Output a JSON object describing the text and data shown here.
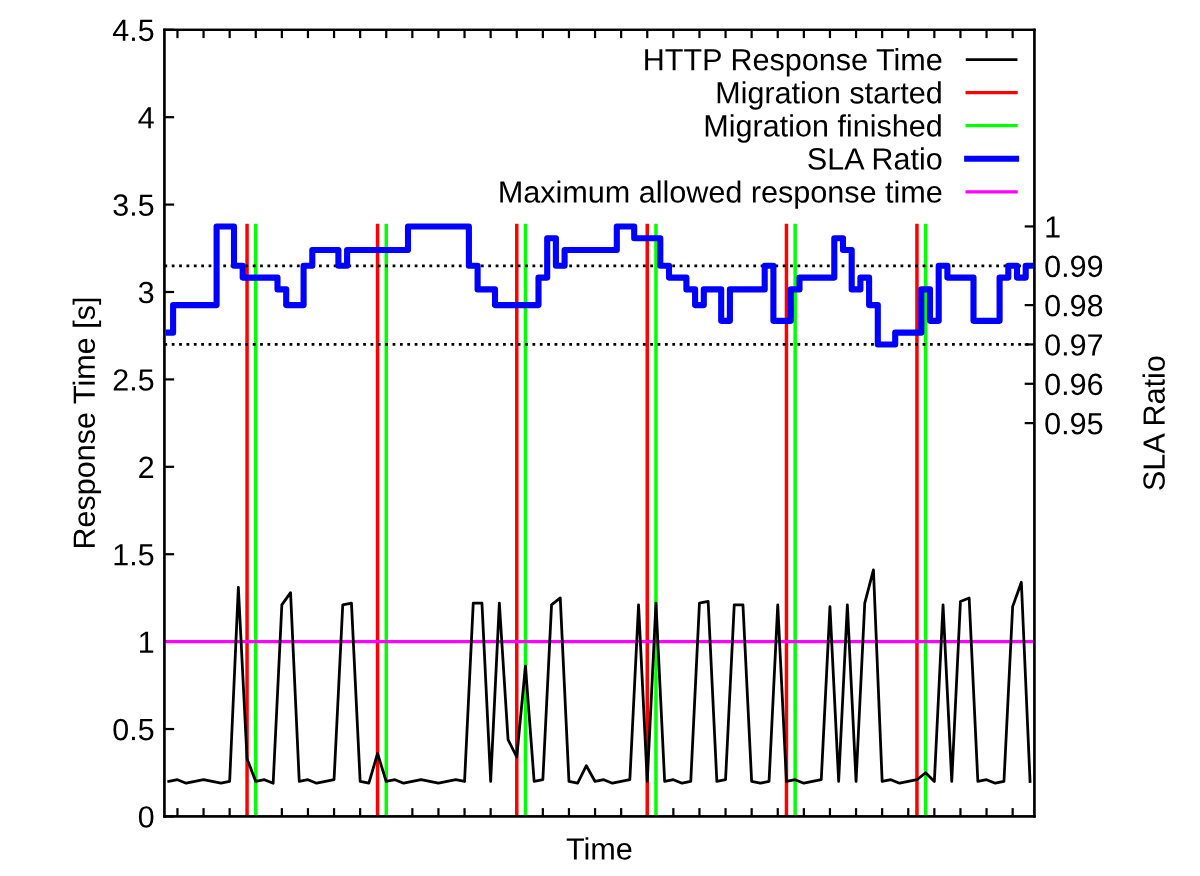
{
  "chart_data": {
    "type": "line",
    "xlabel": "Time",
    "ylabel": "Response Time [s]",
    "y2label": "SLA Ratio",
    "categories": [
      null,
      null,
      null,
      null,
      null,
      null,
      null,
      null,
      null,
      null,
      null,
      null,
      null,
      null,
      null,
      null,
      null,
      null,
      null,
      null,
      null,
      null,
      null,
      null,
      null,
      null,
      null,
      null,
      null,
      null,
      null,
      null,
      null,
      null,
      null,
      null,
      null,
      null,
      null,
      null,
      null,
      null,
      null,
      null,
      null,
      null,
      null,
      null,
      null,
      null,
      null,
      null,
      null,
      null,
      null,
      null,
      null,
      null,
      null,
      null,
      null,
      null,
      null,
      null,
      null,
      null,
      null,
      null,
      null,
      null,
      null,
      null,
      null,
      null,
      null,
      null,
      null,
      null,
      null,
      null,
      null,
      null,
      null,
      null,
      null,
      null,
      null,
      null,
      null,
      null,
      null,
      null,
      null,
      null,
      null,
      null,
      null,
      null,
      null,
      null
    ],
    "ylim": [
      0,
      4.5
    ],
    "yticks": [
      0,
      0.5,
      1,
      1.5,
      2,
      2.5,
      3,
      3.5,
      4,
      4.5
    ],
    "y2lim": [
      0.85,
      1.05
    ],
    "y2ticks": [
      0.95,
      0.96,
      0.97,
      0.98,
      0.99,
      1
    ],
    "legend": "top right",
    "series": [
      {
        "name": "HTTP Response Time",
        "color": "#000000",
        "values": [
          0.2,
          0.21,
          0.19,
          0.2,
          0.21,
          0.2,
          0.19,
          0.2,
          1.31,
          0.33,
          0.2,
          0.21,
          0.19,
          1.21,
          1.28,
          0.2,
          0.21,
          0.19,
          0.2,
          0.21,
          1.21,
          1.22,
          0.2,
          0.19,
          0.36,
          0.2,
          0.21,
          0.19,
          0.2,
          0.21,
          0.2,
          0.19,
          0.2,
          0.21,
          0.2,
          1.22,
          1.22,
          0.2,
          1.22,
          0.44,
          0.34,
          0.86,
          0.2,
          0.21,
          1.21,
          1.25,
          0.2,
          0.19,
          0.29,
          0.2,
          0.21,
          0.19,
          0.2,
          0.21,
          1.21,
          0.2,
          1.22,
          0.2,
          0.21,
          0.19,
          0.2,
          1.22,
          1.23,
          0.2,
          0.21,
          1.21,
          1.21,
          0.2,
          0.19,
          0.2,
          1.21,
          0.2,
          0.21,
          0.19,
          0.2,
          0.21,
          1.2,
          0.2,
          1.21,
          0.2,
          1.22,
          1.41,
          0.2,
          0.21,
          0.19,
          0.2,
          0.21,
          0.25,
          0.2,
          1.21,
          0.2,
          1.23,
          1.25,
          0.2,
          0.21,
          0.19,
          0.2,
          1.2,
          1.34,
          0.2
        ]
      },
      {
        "name": "Migration started",
        "color": "#ff0000",
        "type": "bar",
        "values": [
          null,
          null,
          null,
          null,
          null,
          null,
          null,
          null,
          null,
          3.39,
          null,
          null,
          null,
          null,
          null,
          null,
          null,
          null,
          null,
          null,
          null,
          null,
          null,
          null,
          3.39,
          null,
          null,
          null,
          null,
          null,
          null,
          null,
          null,
          null,
          null,
          null,
          null,
          null,
          null,
          null,
          3.39,
          null,
          null,
          null,
          null,
          null,
          null,
          null,
          null,
          null,
          null,
          null,
          null,
          null,
          null,
          3.39,
          null,
          null,
          null,
          null,
          null,
          null,
          null,
          null,
          null,
          null,
          null,
          null,
          null,
          null,
          null,
          3.39,
          null,
          null,
          null,
          null,
          null,
          null,
          null,
          null,
          null,
          null,
          null,
          null,
          null,
          null,
          3.39,
          null,
          null,
          null,
          null,
          null,
          null,
          null,
          null,
          null,
          null,
          null,
          null,
          null
        ]
      },
      {
        "name": "Migration finished",
        "color": "#00ff00",
        "type": "bar",
        "values": [
          null,
          null,
          null,
          null,
          null,
          null,
          null,
          null,
          null,
          null,
          3.39,
          null,
          null,
          null,
          null,
          null,
          null,
          null,
          null,
          null,
          null,
          null,
          null,
          null,
          null,
          3.39,
          null,
          null,
          null,
          null,
          null,
          null,
          null,
          null,
          null,
          null,
          null,
          null,
          null,
          null,
          null,
          3.39,
          null,
          null,
          null,
          null,
          null,
          null,
          null,
          null,
          null,
          null,
          null,
          null,
          null,
          null,
          3.39,
          null,
          null,
          null,
          null,
          null,
          null,
          null,
          null,
          null,
          null,
          null,
          null,
          null,
          null,
          null,
          3.39,
          null,
          null,
          null,
          null,
          null,
          null,
          null,
          null,
          null,
          null,
          null,
          null,
          null,
          null,
          3.39,
          null,
          null,
          null,
          null,
          null,
          null,
          null,
          null,
          null,
          null,
          null,
          null
        ]
      },
      {
        "name": "SLA Ratio",
        "color": "#0000ff",
        "type": "step",
        "axis": "y2",
        "values": [
          0.973,
          0.98,
          0.98,
          0.98,
          0.98,
          0.98,
          1.0,
          1.0,
          0.99,
          0.987,
          0.987,
          0.987,
          0.987,
          0.984,
          0.98,
          0.98,
          0.99,
          0.994,
          0.994,
          0.994,
          0.99,
          0.994,
          0.994,
          0.994,
          0.994,
          0.994,
          0.994,
          0.994,
          1.0,
          1.0,
          1.0,
          1.0,
          1.0,
          1.0,
          1.0,
          0.99,
          0.984,
          0.984,
          0.98,
          0.98,
          0.98,
          0.98,
          0.98,
          0.987,
          0.997,
          0.99,
          0.994,
          0.994,
          0.994,
          0.994,
          0.994,
          0.994,
          1.0,
          1.0,
          0.997,
          0.997,
          0.997,
          0.99,
          0.987,
          0.987,
          0.984,
          0.98,
          0.984,
          0.984,
          0.976,
          0.984,
          0.984,
          0.984,
          0.984,
          0.99,
          0.976,
          0.976,
          0.984,
          0.987,
          0.987,
          0.987,
          0.987,
          0.997,
          0.994,
          0.984,
          0.987,
          0.98,
          0.97,
          0.97,
          0.973,
          0.973,
          0.973,
          0.984,
          0.976,
          0.99,
          0.987,
          0.987,
          0.987,
          0.976,
          0.976,
          0.976,
          0.987,
          0.99,
          0.987,
          0.99
        ]
      }
    ],
    "ref_lines": [
      {
        "axis": "y2",
        "value": 0.99,
        "color": "#000000",
        "line_style": "dotted"
      },
      {
        "axis": "y2",
        "value": 0.97,
        "color": "#000000",
        "line_style": "dotted"
      },
      {
        "axis": "y",
        "value": 1,
        "label": "Maximum allowed response time",
        "color": "#ff00ff"
      }
    ]
  }
}
